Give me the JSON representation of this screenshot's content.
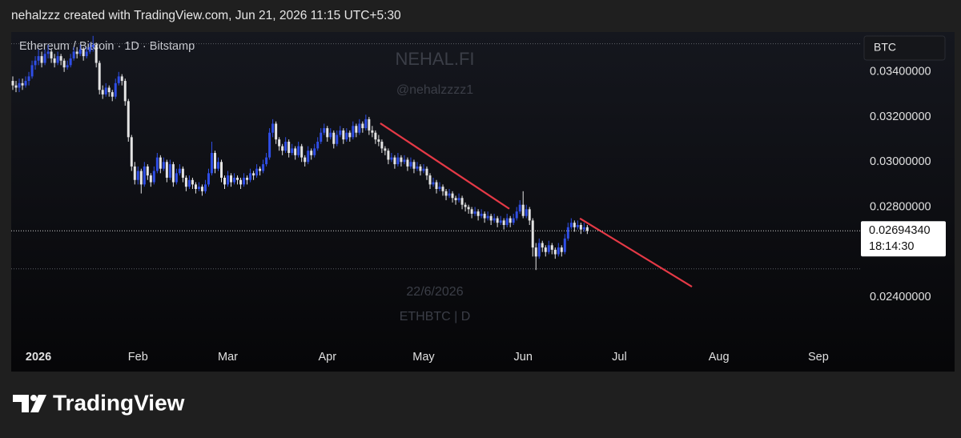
{
  "header": "nehalzzz created with TradingView.com, Jun 21, 2026 11:15 UTC+5:30",
  "brand": "TradingView",
  "chart_data": {
    "type": "candlestick",
    "symbol": "Ethereum / Bitcoin · 1D · Bitstamp",
    "currency": "BTC",
    "watermark": [
      "NEHAL.FI",
      "@nehalzzzz1",
      "22/6/2026",
      "ETHBTC | D"
    ],
    "up_color": "#2f4ee6",
    "down_color": "#e4e4e4",
    "trendline_color": "#e53946",
    "ylim": [
      0.0219,
      0.0357
    ],
    "xlim": [
      -0.5,
      264
    ],
    "yticks": [
      {
        "value": 0.034,
        "label": "0.03400000"
      },
      {
        "value": 0.032,
        "label": "0.03200000"
      },
      {
        "value": 0.03,
        "label": "0.03000000"
      },
      {
        "value": 0.028,
        "label": "0.02800000"
      },
      {
        "value": 0.024,
        "label": "0.02400000"
      }
    ],
    "xticks": [
      {
        "value": 8,
        "label": "2026"
      },
      {
        "value": 39,
        "label": "Feb"
      },
      {
        "value": 67,
        "label": "Mar"
      },
      {
        "value": 98,
        "label": "Apr"
      },
      {
        "value": 128,
        "label": "May"
      },
      {
        "value": 159,
        "label": "Jun"
      },
      {
        "value": 189,
        "label": "Jul"
      },
      {
        "value": 220,
        "label": "Aug"
      },
      {
        "value": 251,
        "label": "Sep"
      }
    ],
    "last_price": {
      "value": 0.0269434,
      "label": "0.02694340"
    },
    "countdown": "18:14:30",
    "hlines": [
      0.03525,
      0.02525
    ],
    "trendlines": [
      {
        "x": [
          114.5,
          154.7
        ],
        "y": [
          0.03172,
          0.02792
        ]
      },
      {
        "x": [
          176.7,
          211.6
        ],
        "y": [
          0.02749,
          0.02446
        ]
      }
    ],
    "candles": [
      [
        0.0336,
        0.0338,
        0.0332,
        0.0334
      ],
      [
        0.0334,
        0.0336,
        0.0331,
        0.0333
      ],
      [
        0.0333,
        0.0337,
        0.0331,
        0.0335
      ],
      [
        0.0335,
        0.0337,
        0.0332,
        0.0334
      ],
      [
        0.0334,
        0.0338,
        0.0333,
        0.0336
      ],
      [
        0.0336,
        0.034,
        0.0334,
        0.0338
      ],
      [
        0.0338,
        0.0345,
        0.0337,
        0.0343
      ],
      [
        0.0343,
        0.0347,
        0.0341,
        0.0345
      ],
      [
        0.0345,
        0.035,
        0.0343,
        0.0347
      ],
      [
        0.0347,
        0.0349,
        0.0342,
        0.0344
      ],
      [
        0.0344,
        0.035,
        0.0343,
        0.0348
      ],
      [
        0.0348,
        0.0352,
        0.0346,
        0.0349
      ],
      [
        0.0349,
        0.035,
        0.0344,
        0.0346
      ],
      [
        0.0346,
        0.0348,
        0.0342,
        0.0344
      ],
      [
        0.0344,
        0.0349,
        0.0343,
        0.0347
      ],
      [
        0.0347,
        0.0348,
        0.0343,
        0.0345
      ],
      [
        0.0345,
        0.0346,
        0.034,
        0.0342
      ],
      [
        0.0342,
        0.0345,
        0.0341,
        0.0343
      ],
      [
        0.0343,
        0.0348,
        0.0342,
        0.0346
      ],
      [
        0.0346,
        0.0351,
        0.0345,
        0.0349
      ],
      [
        0.0349,
        0.0351,
        0.0346,
        0.0348
      ],
      [
        0.0348,
        0.0352,
        0.0347,
        0.035
      ],
      [
        0.035,
        0.0351,
        0.0345,
        0.0347
      ],
      [
        0.0347,
        0.0351,
        0.0346,
        0.0349
      ],
      [
        0.0349,
        0.0353,
        0.0348,
        0.0351
      ],
      [
        0.0351,
        0.0356,
        0.0349,
        0.0352
      ],
      [
        0.0352,
        0.0353,
        0.0342,
        0.0344
      ],
      [
        0.0344,
        0.0345,
        0.033,
        0.0332
      ],
      [
        0.0332,
        0.0334,
        0.0328,
        0.033
      ],
      [
        0.033,
        0.0335,
        0.0329,
        0.0333
      ],
      [
        0.0333,
        0.0334,
        0.0329,
        0.0331
      ],
      [
        0.0331,
        0.0332,
        0.0327,
        0.0329
      ],
      [
        0.0329,
        0.0337,
        0.0328,
        0.0335
      ],
      [
        0.0335,
        0.034,
        0.0334,
        0.0338
      ],
      [
        0.0338,
        0.0339,
        0.0334,
        0.0336
      ],
      [
        0.0336,
        0.0337,
        0.0325,
        0.0327
      ],
      [
        0.0327,
        0.0328,
        0.0309,
        0.0311
      ],
      [
        0.0311,
        0.0312,
        0.0296,
        0.0298
      ],
      [
        0.0298,
        0.03,
        0.029,
        0.0292
      ],
      [
        0.0292,
        0.0298,
        0.029,
        0.0296
      ],
      [
        0.0296,
        0.0297,
        0.0286,
        0.029
      ],
      [
        0.029,
        0.03,
        0.0289,
        0.0298
      ],
      [
        0.0298,
        0.0299,
        0.0292,
        0.0294
      ],
      [
        0.0294,
        0.0295,
        0.0289,
        0.0291
      ],
      [
        0.0291,
        0.0298,
        0.029,
        0.0296
      ],
      [
        0.0296,
        0.0304,
        0.0295,
        0.0302
      ],
      [
        0.0302,
        0.0303,
        0.0295,
        0.0297
      ],
      [
        0.0297,
        0.0302,
        0.0296,
        0.03
      ],
      [
        0.03,
        0.0301,
        0.0291,
        0.0293
      ],
      [
        0.0293,
        0.0301,
        0.0292,
        0.0299
      ],
      [
        0.0299,
        0.03,
        0.0289,
        0.0291
      ],
      [
        0.0291,
        0.0297,
        0.029,
        0.0295
      ],
      [
        0.0295,
        0.0299,
        0.0294,
        0.0297
      ],
      [
        0.0297,
        0.0298,
        0.0291,
        0.0293
      ],
      [
        0.0293,
        0.0294,
        0.0287,
        0.0289
      ],
      [
        0.0289,
        0.0294,
        0.0288,
        0.0292
      ],
      [
        0.0292,
        0.0293,
        0.0288,
        0.029
      ],
      [
        0.029,
        0.0291,
        0.0286,
        0.0288
      ],
      [
        0.0288,
        0.0291,
        0.0287,
        0.0289
      ],
      [
        0.0289,
        0.029,
        0.0285,
        0.0287
      ],
      [
        0.0287,
        0.0292,
        0.0286,
        0.029
      ],
      [
        0.029,
        0.0297,
        0.0289,
        0.0295
      ],
      [
        0.0295,
        0.0309,
        0.0294,
        0.0304
      ],
      [
        0.0304,
        0.0305,
        0.0295,
        0.0297
      ],
      [
        0.0297,
        0.0302,
        0.0296,
        0.03
      ],
      [
        0.03,
        0.0301,
        0.0291,
        0.0293
      ],
      [
        0.0293,
        0.0294,
        0.0288,
        0.029
      ],
      [
        0.029,
        0.0296,
        0.0289,
        0.0294
      ],
      [
        0.0294,
        0.0295,
        0.0289,
        0.0291
      ],
      [
        0.0291,
        0.0295,
        0.029,
        0.0293
      ],
      [
        0.0293,
        0.0294,
        0.029,
        0.0292
      ],
      [
        0.0292,
        0.0293,
        0.0288,
        0.029
      ],
      [
        0.029,
        0.0295,
        0.0289,
        0.0293
      ],
      [
        0.0293,
        0.0294,
        0.029,
        0.0292
      ],
      [
        0.0292,
        0.0297,
        0.0291,
        0.0295
      ],
      [
        0.0295,
        0.0296,
        0.0292,
        0.0294
      ],
      [
        0.0294,
        0.0299,
        0.0293,
        0.0297
      ],
      [
        0.0297,
        0.0298,
        0.0294,
        0.0296
      ],
      [
        0.0296,
        0.0301,
        0.0295,
        0.0299
      ],
      [
        0.0299,
        0.0304,
        0.0298,
        0.0302
      ],
      [
        0.0302,
        0.0315,
        0.0301,
        0.0313
      ],
      [
        0.0313,
        0.0319,
        0.0311,
        0.0317
      ],
      [
        0.0317,
        0.0318,
        0.0308,
        0.031
      ],
      [
        0.031,
        0.0311,
        0.0305,
        0.0307
      ],
      [
        0.0307,
        0.0308,
        0.0303,
        0.0305
      ],
      [
        0.0305,
        0.0311,
        0.0304,
        0.0309
      ],
      [
        0.0309,
        0.031,
        0.0302,
        0.0304
      ],
      [
        0.0304,
        0.0308,
        0.0303,
        0.0306
      ],
      [
        0.0306,
        0.0307,
        0.0301,
        0.0303
      ],
      [
        0.0303,
        0.0309,
        0.0302,
        0.0307
      ],
      [
        0.0307,
        0.0308,
        0.03,
        0.0302
      ],
      [
        0.0302,
        0.0303,
        0.0298,
        0.03
      ],
      [
        0.03,
        0.0307,
        0.0299,
        0.0305
      ],
      [
        0.0305,
        0.0306,
        0.0301,
        0.0303
      ],
      [
        0.0303,
        0.0308,
        0.0302,
        0.0306
      ],
      [
        0.0306,
        0.0311,
        0.0305,
        0.0309
      ],
      [
        0.0309,
        0.0315,
        0.0308,
        0.0313
      ],
      [
        0.0313,
        0.0317,
        0.0312,
        0.0315
      ],
      [
        0.0315,
        0.0316,
        0.0309,
        0.0311
      ],
      [
        0.0311,
        0.0315,
        0.031,
        0.0313
      ],
      [
        0.0313,
        0.0314,
        0.0306,
        0.0308
      ],
      [
        0.0308,
        0.0314,
        0.0307,
        0.0312
      ],
      [
        0.0312,
        0.0316,
        0.0311,
        0.0314
      ],
      [
        0.0314,
        0.0315,
        0.0308,
        0.031
      ],
      [
        0.031,
        0.0315,
        0.0309,
        0.0313
      ],
      [
        0.0313,
        0.0314,
        0.0309,
        0.0311
      ],
      [
        0.0311,
        0.0318,
        0.031,
        0.0316
      ],
      [
        0.0316,
        0.0317,
        0.0311,
        0.0313
      ],
      [
        0.0313,
        0.0319,
        0.0312,
        0.0317
      ],
      [
        0.0317,
        0.0318,
        0.0313,
        0.0315
      ],
      [
        0.0315,
        0.0321,
        0.0314,
        0.0319
      ],
      [
        0.0319,
        0.032,
        0.0312,
        0.0314
      ],
      [
        0.0314,
        0.0316,
        0.0311,
        0.0313
      ],
      [
        0.0313,
        0.0314,
        0.0308,
        0.031
      ],
      [
        0.031,
        0.0312,
        0.0307,
        0.0309
      ],
      [
        0.0309,
        0.031,
        0.0304,
        0.0306
      ],
      [
        0.0306,
        0.0307,
        0.0303,
        0.0305
      ],
      [
        0.0305,
        0.0306,
        0.0299,
        0.0301
      ],
      [
        0.0301,
        0.0304,
        0.03,
        0.0302
      ],
      [
        0.0302,
        0.0303,
        0.0297,
        0.0299
      ],
      [
        0.0299,
        0.0304,
        0.0298,
        0.0302
      ],
      [
        0.0302,
        0.0303,
        0.0298,
        0.03
      ],
      [
        0.03,
        0.0303,
        0.0299,
        0.0301
      ],
      [
        0.0301,
        0.0302,
        0.0296,
        0.0298
      ],
      [
        0.0298,
        0.0302,
        0.0297,
        0.03
      ],
      [
        0.03,
        0.0301,
        0.0295,
        0.0297
      ],
      [
        0.0297,
        0.03,
        0.0296,
        0.0298
      ],
      [
        0.0298,
        0.0299,
        0.0294,
        0.0296
      ],
      [
        0.0296,
        0.0299,
        0.0295,
        0.0297
      ],
      [
        0.0297,
        0.0298,
        0.0292,
        0.0294
      ],
      [
        0.0294,
        0.0295,
        0.0288,
        0.029
      ],
      [
        0.029,
        0.0293,
        0.0289,
        0.0291
      ],
      [
        0.0291,
        0.0292,
        0.0286,
        0.0288
      ],
      [
        0.0288,
        0.0291,
        0.0287,
        0.0289
      ],
      [
        0.0289,
        0.029,
        0.0285,
        0.0287
      ],
      [
        0.0287,
        0.0288,
        0.0283,
        0.0285
      ],
      [
        0.0285,
        0.0288,
        0.0284,
        0.0286
      ],
      [
        0.0286,
        0.0287,
        0.0282,
        0.0284
      ],
      [
        0.0284,
        0.0285,
        0.0281,
        0.0283
      ],
      [
        0.0283,
        0.0286,
        0.0282,
        0.0284
      ],
      [
        0.0284,
        0.0285,
        0.0279,
        0.0281
      ],
      [
        0.0281,
        0.0282,
        0.0278,
        0.028
      ],
      [
        0.028,
        0.0281,
        0.0277,
        0.0279
      ],
      [
        0.0279,
        0.028,
        0.0275,
        0.0277
      ],
      [
        0.0277,
        0.028,
        0.0276,
        0.0278
      ],
      [
        0.0278,
        0.0279,
        0.0274,
        0.0276
      ],
      [
        0.0276,
        0.0279,
        0.0275,
        0.0277
      ],
      [
        0.0277,
        0.0278,
        0.0273,
        0.0275
      ],
      [
        0.0275,
        0.0278,
        0.0274,
        0.0276
      ],
      [
        0.0276,
        0.0277,
        0.0272,
        0.0274
      ],
      [
        0.0274,
        0.0277,
        0.0273,
        0.0275
      ],
      [
        0.0275,
        0.0276,
        0.0271,
        0.0273
      ],
      [
        0.0273,
        0.0276,
        0.0272,
        0.0274
      ],
      [
        0.0274,
        0.0275,
        0.027,
        0.0272
      ],
      [
        0.0272,
        0.0277,
        0.0271,
        0.0275
      ],
      [
        0.0275,
        0.0276,
        0.0271,
        0.0273
      ],
      [
        0.0273,
        0.0277,
        0.0272,
        0.0275
      ],
      [
        0.0275,
        0.028,
        0.0274,
        0.0278
      ],
      [
        0.0278,
        0.0283,
        0.0277,
        0.0281
      ],
      [
        0.0281,
        0.0287,
        0.0275,
        0.0276
      ],
      [
        0.0276,
        0.0281,
        0.0275,
        0.0279
      ],
      [
        0.0279,
        0.028,
        0.0272,
        0.0274
      ],
      [
        0.0274,
        0.0275,
        0.0258,
        0.0262
      ],
      [
        0.0262,
        0.0264,
        0.0252,
        0.0258
      ],
      [
        0.0258,
        0.0266,
        0.0257,
        0.0264
      ],
      [
        0.0264,
        0.0265,
        0.026,
        0.0262
      ],
      [
        0.0262,
        0.0263,
        0.0258,
        0.026
      ],
      [
        0.026,
        0.0265,
        0.0259,
        0.0263
      ],
      [
        0.0263,
        0.0264,
        0.0259,
        0.0261
      ],
      [
        0.0261,
        0.0262,
        0.0257,
        0.0259
      ],
      [
        0.0259,
        0.0264,
        0.0258,
        0.0262
      ],
      [
        0.0262,
        0.0263,
        0.0258,
        0.026
      ],
      [
        0.026,
        0.0268,
        0.0259,
        0.0266
      ],
      [
        0.0266,
        0.0273,
        0.0265,
        0.0271
      ],
      [
        0.0271,
        0.0275,
        0.027,
        0.0273
      ],
      [
        0.0273,
        0.0274,
        0.0269,
        0.0271
      ],
      [
        0.0271,
        0.0274,
        0.027,
        0.0272
      ],
      [
        0.0272,
        0.0273,
        0.0268,
        0.027
      ],
      [
        0.027,
        0.0273,
        0.0269,
        0.0271
      ],
      [
        0.0271,
        0.0272,
        0.0268,
        0.0269434
      ]
    ]
  }
}
